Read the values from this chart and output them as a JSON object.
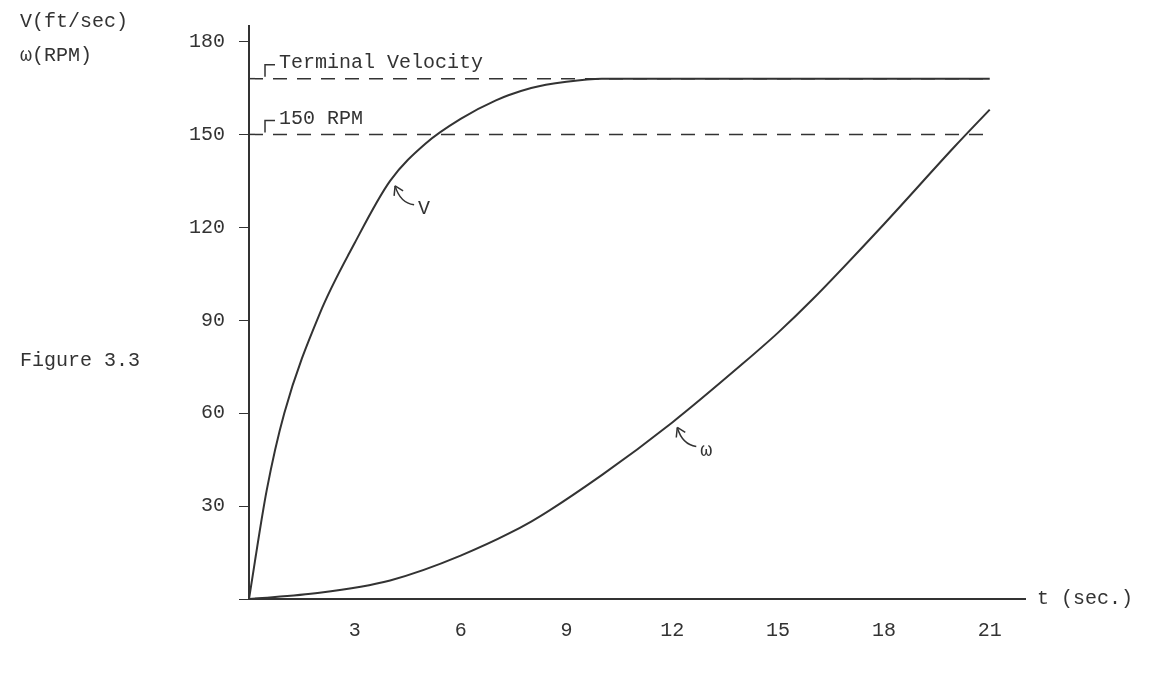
{
  "chart_data": {
    "type": "line",
    "ylabel": "V(ft/sec)\nω(RPM)",
    "xlabel": "t (sec.)",
    "xlim": [
      0,
      22
    ],
    "ylim": [
      0,
      185
    ],
    "xticks": [
      {
        "value": 0,
        "label": null
      },
      3,
      6,
      9,
      12,
      15,
      18,
      21
    ],
    "yticks": [
      {
        "value": 0,
        "label": null
      },
      30,
      60,
      90,
      120,
      150,
      180
    ],
    "series": [
      {
        "color": "#333333",
        "x": [
          0,
          0.5,
          1,
          2,
          3,
          4,
          5,
          6,
          7,
          8,
          9,
          10,
          11,
          21
        ],
        "values": [
          0,
          35,
          60,
          92,
          115,
          135,
          147,
          155,
          161,
          165,
          167,
          168,
          168,
          168
        ]
      },
      {
        "color": "#333333",
        "x": [
          0,
          2,
          4,
          6,
          8,
          10,
          12,
          14,
          15,
          16,
          18,
          20,
          21
        ],
        "values": [
          0,
          2,
          6,
          14,
          25,
          40,
          57,
          76,
          86,
          97,
          121,
          146,
          158
        ]
      }
    ],
    "ref_lines": [
      {
        "axis": "y",
        "value": 168,
        "label": "Terminal Velocity",
        "line_style": "dashed"
      },
      {
        "axis": "y",
        "value": 150,
        "label": "150 RPM",
        "line_style": "dashed"
      }
    ],
    "annotations": [
      {
        "text": "V",
        "x": 4,
        "y": 135
      },
      {
        "text": "ω",
        "x": 12,
        "y": 57
      },
      "Figure 3.3"
    ],
    "grid": false,
    "legend": false,
    "marker": "none",
    "line_style": "solid"
  }
}
